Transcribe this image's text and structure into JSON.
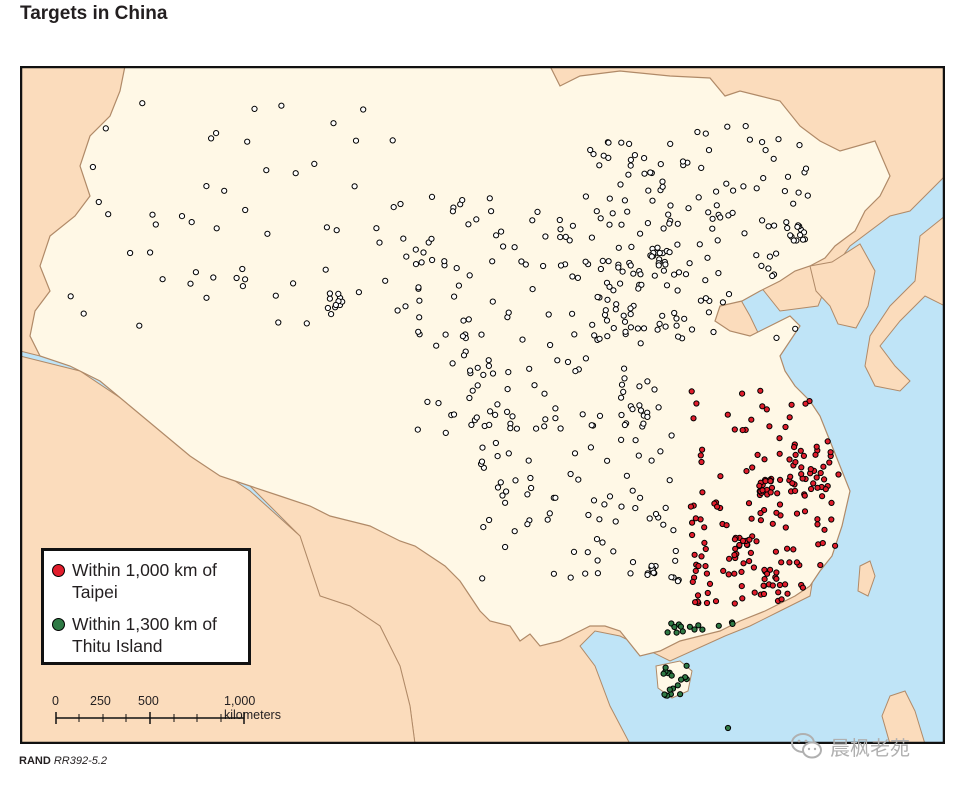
{
  "title": "Targets in China",
  "colors": {
    "sea": "#bfe4f7",
    "foreign_land": "#fbdcbc",
    "china": "#fff8e6",
    "border": "#b08a68",
    "target_default": "#ffffff",
    "target_taipei": "#e11d2c",
    "target_thitu": "#2f7a45"
  },
  "legend": {
    "items": [
      {
        "label": "Within 1,000 km of Taipei",
        "color": "#e11d2c"
      },
      {
        "label": "Within 1,300 km of Thitu Island",
        "color": "#2f7a45"
      }
    ]
  },
  "scale_bar": {
    "labels": [
      "0",
      "250",
      "500",
      "1,000 kilometers"
    ]
  },
  "footer": {
    "org": "RAND",
    "report": "RR392-5.2"
  },
  "watermark": {
    "text": "晨枫老苑",
    "icon": "wechat-icon"
  }
}
